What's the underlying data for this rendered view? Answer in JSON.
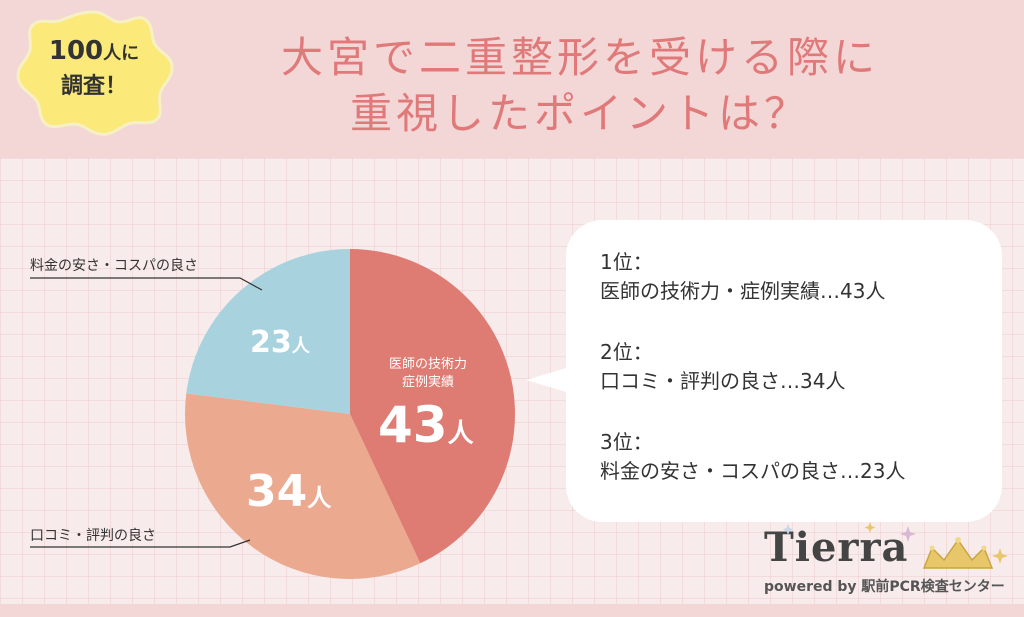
{
  "header": {
    "title_line1": "大宮で二重整形を受ける際に",
    "title_line2": "重視したポイントは？",
    "badge_count": "100",
    "badge_unit": "人に",
    "badge_line2": "調査！"
  },
  "chart_data": {
    "type": "pie",
    "unit": "人",
    "slices": [
      {
        "label": "医師の技術力・症例実績",
        "label_line1": "医師の技術力",
        "label_line2": "症例実績",
        "value": 43,
        "color": "#de7b72"
      },
      {
        "label": "口コミ・評判の良さ",
        "value": 34,
        "color": "#eba98f"
      },
      {
        "label": "料金の安さ・コスパの良さ",
        "value": 23,
        "color": "#a8d2de"
      }
    ],
    "callouts": {
      "cost": "料金の安さ・コスパの良さ",
      "review": "口コミ・評判の良さ"
    },
    "value_labels": {
      "tech_number": "43",
      "review_number": "34",
      "cost_number": "23",
      "unit": "人"
    }
  },
  "ranking": [
    {
      "title": "1位：",
      "detail": "医師の技術力・症例実績…43人"
    },
    {
      "title": "2位：",
      "detail": "口コミ・評判の良さ…34人"
    },
    {
      "title": "3位：",
      "detail": "料金の安さ・コスパの良さ…23人"
    }
  ],
  "logo": {
    "name": "Tierra",
    "sub": "powered by 駅前PCR検査センター"
  },
  "colors": {
    "title": "#e07a7a",
    "header_bg": "#f3d6d6",
    "badge": "#fbe97a"
  }
}
